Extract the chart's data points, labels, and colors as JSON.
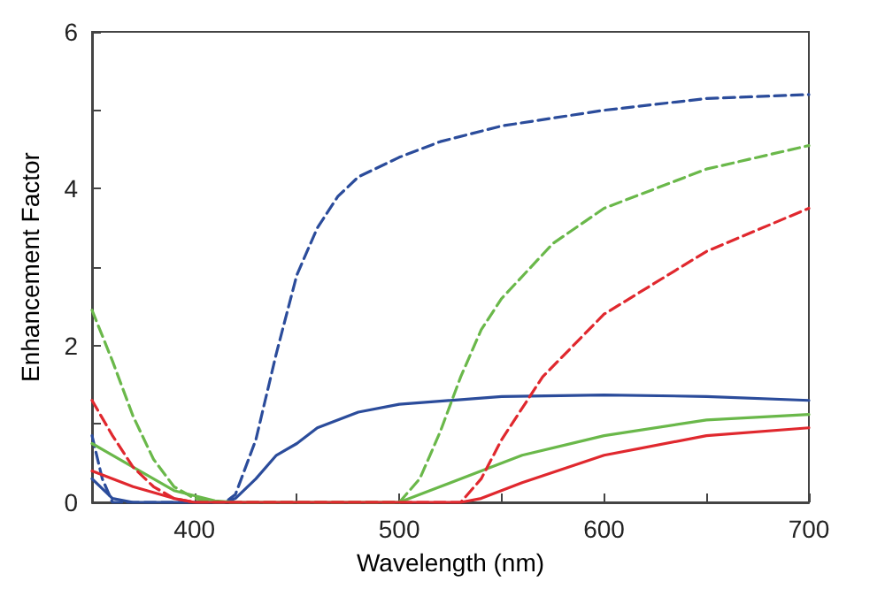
{
  "chart_data": {
    "type": "line",
    "xlabel": "Wavelength (nm)",
    "ylabel": "Enhancement Factor",
    "xlim": [
      350,
      700
    ],
    "xticks": [
      {
        "value": 400,
        "label": "400"
      },
      {
        "value": 450,
        "label": null
      },
      {
        "value": 500,
        "label": "500"
      },
      {
        "value": 550,
        "label": null
      },
      {
        "value": 600,
        "label": "600"
      },
      {
        "value": 650,
        "label": null
      },
      {
        "value": 700,
        "label": "700"
      }
    ],
    "ylim": [
      0,
      6
    ],
    "yticks": [
      0,
      {
        "value": 1,
        "label": null
      },
      2,
      {
        "value": 3,
        "label": null
      },
      4,
      {
        "value": 5,
        "label": null
      },
      6
    ],
    "grid": false,
    "marker": "none",
    "series": [
      {
        "color": "#2b4c9b",
        "line_style": "dashed",
        "x": [
          350,
          355,
          360,
          415,
          420,
          430,
          440,
          450,
          460,
          470,
          480,
          500,
          520,
          550,
          600,
          650,
          700
        ],
        "values": [
          0.85,
          0.3,
          0,
          0,
          0.1,
          0.8,
          1.9,
          2.9,
          3.5,
          3.9,
          4.15,
          4.4,
          4.6,
          4.8,
          5.0,
          5.15,
          5.2
        ]
      },
      {
        "color": "#2b4c9b",
        "line_style": "solid",
        "x": [
          350,
          360,
          370,
          415,
          420,
          430,
          440,
          450,
          460,
          480,
          500,
          550,
          600,
          650,
          700
        ],
        "values": [
          0.3,
          0.05,
          0,
          0,
          0.05,
          0.3,
          0.6,
          0.75,
          0.95,
          1.15,
          1.25,
          1.35,
          1.37,
          1.35,
          1.3
        ]
      },
      {
        "color": "#6ab84a",
        "line_style": "dashed",
        "x": [
          350,
          360,
          370,
          380,
          390,
          400,
          410,
          500,
          510,
          520,
          530,
          540,
          550,
          575,
          600,
          650,
          700
        ],
        "values": [
          2.45,
          1.8,
          1.1,
          0.55,
          0.2,
          0.05,
          0,
          0,
          0.3,
          0.9,
          1.6,
          2.2,
          2.6,
          3.3,
          3.75,
          4.25,
          4.55
        ]
      },
      {
        "color": "#6ab84a",
        "line_style": "solid",
        "x": [
          350,
          370,
          390,
          410,
          420,
          500,
          520,
          540,
          560,
          600,
          650,
          700
        ],
        "values": [
          0.75,
          0.45,
          0.15,
          0.02,
          0,
          0,
          0.2,
          0.4,
          0.6,
          0.85,
          1.05,
          1.12
        ]
      },
      {
        "color": "#e0282e",
        "line_style": "dashed",
        "x": [
          350,
          360,
          370,
          380,
          390,
          400,
          530,
          540,
          550,
          570,
          600,
          650,
          700
        ],
        "values": [
          1.3,
          0.85,
          0.45,
          0.2,
          0.05,
          0,
          0,
          0.3,
          0.8,
          1.6,
          2.4,
          3.2,
          3.75
        ]
      },
      {
        "color": "#e0282e",
        "line_style": "solid",
        "x": [
          350,
          370,
          390,
          400,
          530,
          540,
          560,
          600,
          650,
          700
        ],
        "values": [
          0.4,
          0.2,
          0.05,
          0,
          0,
          0.05,
          0.25,
          0.6,
          0.85,
          0.95
        ]
      }
    ]
  }
}
